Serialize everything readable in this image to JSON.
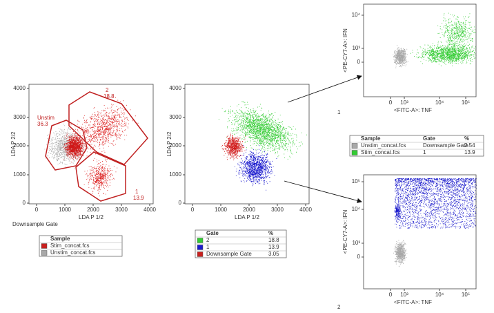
{
  "panels": [
    {
      "y_label": "LDA P 2/2",
      "x_label": "LDA P 1/2",
      "y_ticks": [
        "0",
        "1000",
        "2000",
        "3000",
        "4000"
      ],
      "x_ticks": [
        "0",
        "1000",
        "2000",
        "3000",
        "4000"
      ],
      "gates": [
        {
          "name": "Unstim",
          "pct": 36.3
        },
        {
          "name": "2",
          "pct": 18.8
        },
        {
          "name": "1",
          "pct": 13.9
        }
      ],
      "caption": "Downsample Gate"
    },
    {
      "y_label": "LDA P 2/2",
      "x_label": "LDA P 1/2",
      "y_ticks": [
        "0",
        "1000",
        "2000",
        "3000",
        "4000"
      ],
      "x_ticks": [
        "0",
        "1000",
        "2000",
        "3000",
        "4000"
      ]
    },
    {
      "y_label": "<PE-CY7-A>: IFN",
      "x_label": "<FITC-A>: TNF",
      "y_ticks": [
        "0",
        "10³",
        "10⁴"
      ],
      "x_ticks": [
        "0",
        "10³",
        "10⁴",
        "10⁵"
      ]
    },
    {
      "y_label": "<PE-CY7-A>: IFN",
      "x_label": "<FITC-A>: TNF",
      "y_ticks": [
        "0",
        "10³",
        "10⁴",
        "10⁵"
      ],
      "x_ticks": [
        "0",
        "10³",
        "10⁴",
        "10⁵"
      ]
    }
  ],
  "tables": [
    {
      "headers": [
        "Sample"
      ],
      "rows": [
        {
          "color": "#c8201e",
          "cells": [
            "Stim_concat.fcs"
          ]
        },
        {
          "color": "#a8a8a8",
          "cells": [
            "Unstim_concat.fcs"
          ]
        }
      ]
    },
    {
      "headers": [
        "Gate",
        "%"
      ],
      "rows": [
        {
          "color": "#33cc33",
          "cells": [
            "2",
            18.8
          ]
        },
        {
          "color": "#1a1acc",
          "cells": [
            "1",
            13.9
          ]
        },
        {
          "color": "#c8201e",
          "cells": [
            "Downsample Gate",
            3.05
          ]
        }
      ]
    },
    {
      "headers": [
        "Sample",
        "Gate",
        "%"
      ],
      "rows": [
        {
          "color": "#a8a8a8",
          "cells": [
            "Unstim_concat.fcs",
            "Downsample Gate",
            2.54
          ]
        },
        {
          "color": "#33cc33",
          "cells": [
            "Stim_concat.fcs",
            "1",
            13.9
          ]
        }
      ]
    }
  ],
  "markers": [
    "1",
    "2"
  ]
}
